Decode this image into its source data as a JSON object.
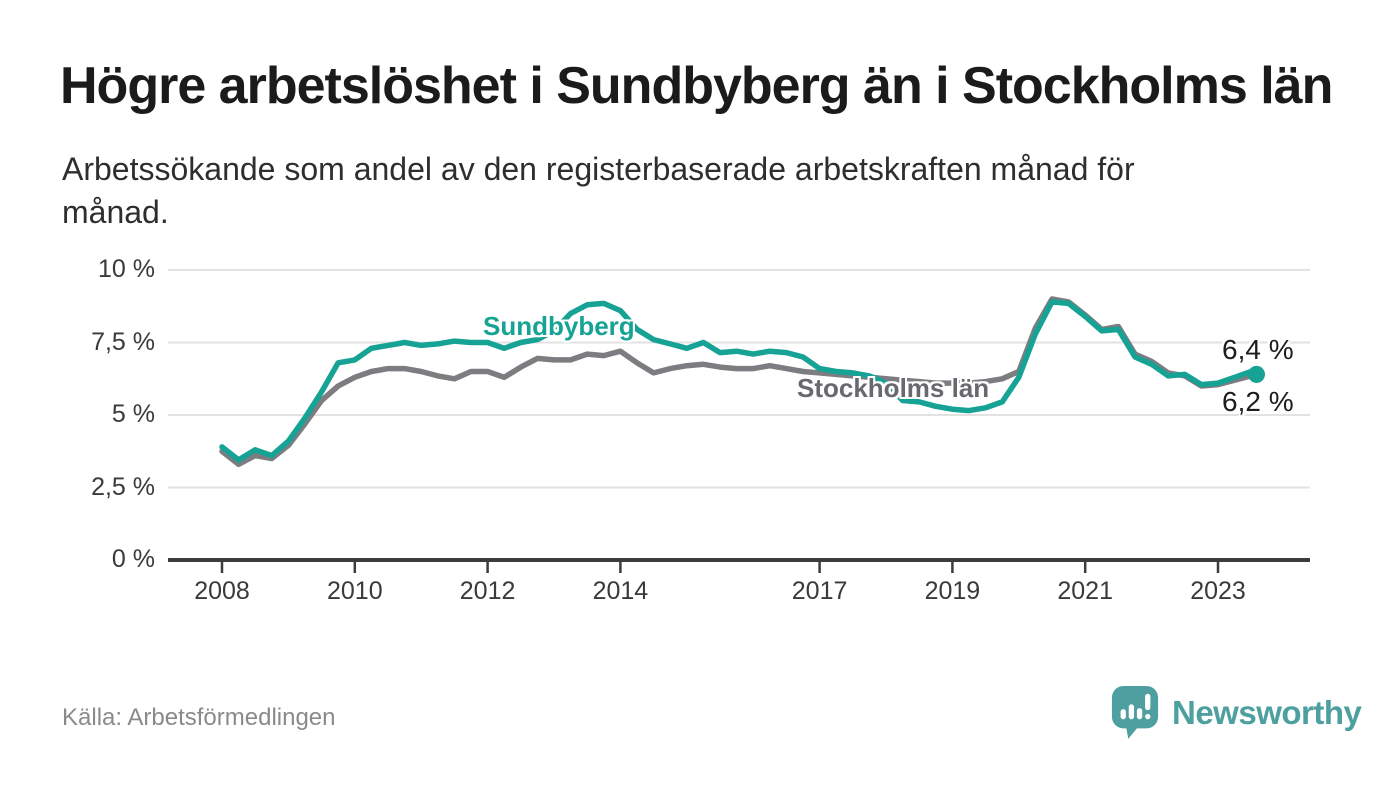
{
  "header": {
    "title": "Högre arbetslöshet i Sundbyberg än i Stockholms län",
    "subtitle_line1": "Arbetssökande som andel av den registerbaserade arbetskraften månad för",
    "subtitle_line2": "månad."
  },
  "footer": {
    "source": "Källa: Arbetsförmedlingen",
    "brand": "Newsworthy",
    "brand_icon": "speech-bubble-bar-chart-icon"
  },
  "colors": {
    "sundbyberg": "#16a294",
    "stockholm_line": "#7d7d81",
    "stockholm_label": "#68686e",
    "grid": "#e2e2e2",
    "axis": "#3c3c3c",
    "value_label": "#1d1d1d",
    "brand_teal": "#4d9fa0"
  },
  "chart_data": {
    "type": "line",
    "title": "Högre arbetslöshet i Sundbyberg än i Stockholms län",
    "subtitle": "Arbetssökande som andel av den registerbaserade arbetskraften månad för månad.",
    "xlabel": "",
    "ylabel": "",
    "ylim": [
      0,
      10
    ],
    "xlim": [
      2007.9,
      2023.9
    ],
    "grid": "horizontal",
    "legend_position": "inline-labels",
    "x_ticks": [
      2008,
      2010,
      2012,
      2014,
      2017,
      2019,
      2021,
      2023
    ],
    "y_ticks": [
      {
        "label": "10 %",
        "value": 10
      },
      {
        "label": "7,5 %",
        "value": 7.5
      },
      {
        "label": "5 %",
        "value": 5
      },
      {
        "label": "2,5 %",
        "value": 2.5
      },
      {
        "label": "0 %",
        "value": 0
      }
    ],
    "x": [
      2008.0,
      2008.25,
      2008.5,
      2008.75,
      2009.0,
      2009.25,
      2009.5,
      2009.75,
      2010.0,
      2010.25,
      2010.5,
      2010.75,
      2011.0,
      2011.25,
      2011.5,
      2011.75,
      2012.0,
      2012.25,
      2012.5,
      2012.75,
      2013.0,
      2013.25,
      2013.5,
      2013.75,
      2014.0,
      2014.25,
      2014.5,
      2014.75,
      2015.0,
      2015.25,
      2015.5,
      2015.75,
      2016.0,
      2016.25,
      2016.5,
      2016.75,
      2017.0,
      2017.25,
      2017.5,
      2017.75,
      2018.0,
      2018.25,
      2018.5,
      2018.75,
      2019.0,
      2019.25,
      2019.5,
      2019.75,
      2020.0,
      2020.25,
      2020.5,
      2020.75,
      2021.0,
      2021.25,
      2021.5,
      2021.75,
      2022.0,
      2022.25,
      2022.5,
      2022.75,
      2023.0,
      2023.25,
      2023.5,
      2023.58
    ],
    "series": [
      {
        "name": "Stockholms län",
        "color": "#7d7d81",
        "end_label": "6,2 %",
        "end_dot": false,
        "values": [
          3.75,
          3.3,
          3.6,
          3.5,
          3.95,
          4.7,
          5.5,
          6.0,
          6.3,
          6.5,
          6.6,
          6.6,
          6.5,
          6.35,
          6.25,
          6.5,
          6.5,
          6.3,
          6.65,
          6.95,
          6.9,
          6.9,
          7.1,
          7.05,
          7.2,
          6.8,
          6.45,
          6.6,
          6.7,
          6.75,
          6.65,
          6.6,
          6.6,
          6.7,
          6.6,
          6.5,
          6.45,
          6.4,
          6.35,
          6.3,
          6.25,
          6.2,
          6.15,
          6.1,
          6.1,
          6.1,
          6.15,
          6.25,
          6.5,
          8.0,
          9.0,
          8.9,
          8.45,
          7.95,
          8.05,
          7.1,
          6.85,
          6.45,
          6.35,
          6.0,
          6.05,
          6.2,
          6.35,
          6.2
        ]
      },
      {
        "name": "Sundbyberg",
        "color": "#16a294",
        "end_label": "6,4 %",
        "end_dot": true,
        "values": [
          3.9,
          3.45,
          3.8,
          3.6,
          4.1,
          4.9,
          5.8,
          6.8,
          6.9,
          7.3,
          7.4,
          7.5,
          7.4,
          7.45,
          7.55,
          7.5,
          7.5,
          7.3,
          7.5,
          7.6,
          7.9,
          8.5,
          8.8,
          8.85,
          8.6,
          7.95,
          7.6,
          7.45,
          7.3,
          7.5,
          7.15,
          7.2,
          7.1,
          7.2,
          7.15,
          7.0,
          6.6,
          6.5,
          6.45,
          6.35,
          6.1,
          5.5,
          5.45,
          5.3,
          5.2,
          5.15,
          5.25,
          5.45,
          6.3,
          7.8,
          8.9,
          8.85,
          8.4,
          7.9,
          7.95,
          7.0,
          6.75,
          6.35,
          6.4,
          6.05,
          6.1,
          6.3,
          6.5,
          6.4
        ]
      }
    ],
    "annotations": {
      "sundbyberg_label": "Sundbyberg",
      "stockholm_label": "Stockholms län",
      "sundbyberg_value": "6,4 %",
      "stockholm_value": "6,2 %"
    }
  }
}
